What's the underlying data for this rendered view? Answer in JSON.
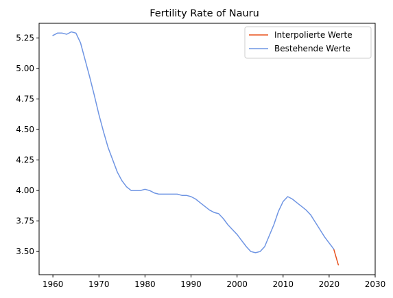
{
  "chart_data": {
    "type": "line",
    "title": "Fertility Rate of Nauru",
    "xlabel": "",
    "ylabel": "",
    "xlim": [
      1957,
      2030
    ],
    "ylim": [
      3.31,
      5.37
    ],
    "xticks": [
      1960,
      1970,
      1980,
      1990,
      2000,
      2010,
      2020,
      2030
    ],
    "yticks": [
      3.5,
      3.75,
      4.0,
      4.25,
      4.5,
      4.75,
      5.0,
      5.25
    ],
    "ytick_labels": [
      "3.50",
      "3.75",
      "4.00",
      "4.25",
      "4.50",
      "4.75",
      "5.00",
      "5.25"
    ],
    "grid": false,
    "legend_position": "upper right",
    "series": [
      {
        "name": "Interpolierte Werte",
        "color": "#e8501c",
        "x": [
          2021,
          2022
        ],
        "y": [
          3.52,
          3.39
        ]
      },
      {
        "name": "Bestehende Werte",
        "color": "#6f95e3",
        "x": [
          1960,
          1961,
          1962,
          1963,
          1964,
          1965,
          1966,
          1967,
          1968,
          1969,
          1970,
          1971,
          1972,
          1973,
          1974,
          1975,
          1976,
          1977,
          1978,
          1979,
          1980,
          1981,
          1982,
          1983,
          1984,
          1985,
          1986,
          1987,
          1988,
          1989,
          1990,
          1991,
          1992,
          1993,
          1994,
          1995,
          1996,
          1997,
          1998,
          1999,
          2000,
          2001,
          2002,
          2003,
          2004,
          2005,
          2006,
          2007,
          2008,
          2009,
          2010,
          2011,
          2012,
          2013,
          2014,
          2015,
          2016,
          2017,
          2018,
          2019,
          2020,
          2021
        ],
        "y": [
          5.27,
          5.29,
          5.29,
          5.28,
          5.3,
          5.29,
          5.21,
          5.07,
          4.93,
          4.78,
          4.62,
          4.48,
          4.35,
          4.25,
          4.15,
          4.08,
          4.03,
          4.0,
          4.0,
          4.0,
          4.01,
          4.0,
          3.98,
          3.97,
          3.97,
          3.97,
          3.97,
          3.97,
          3.96,
          3.96,
          3.95,
          3.93,
          3.9,
          3.87,
          3.84,
          3.82,
          3.81,
          3.77,
          3.72,
          3.68,
          3.64,
          3.59,
          3.54,
          3.5,
          3.49,
          3.5,
          3.54,
          3.63,
          3.72,
          3.83,
          3.91,
          3.95,
          3.93,
          3.9,
          3.87,
          3.84,
          3.8,
          3.74,
          3.68,
          3.62,
          3.57,
          3.52
        ]
      }
    ]
  }
}
